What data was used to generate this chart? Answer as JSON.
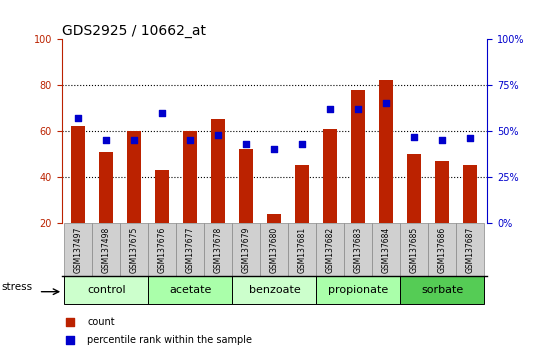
{
  "title": "GDS2925 / 10662_at",
  "samples": [
    "GSM137497",
    "GSM137498",
    "GSM137675",
    "GSM137676",
    "GSM137677",
    "GSM137678",
    "GSM137679",
    "GSM137680",
    "GSM137681",
    "GSM137682",
    "GSM137683",
    "GSM137684",
    "GSM137685",
    "GSM137686",
    "GSM137687"
  ],
  "count_values": [
    62,
    51,
    60,
    43,
    60,
    65,
    52,
    24,
    45,
    61,
    78,
    82,
    50,
    47,
    45
  ],
  "percentile_values": [
    57,
    45,
    45,
    60,
    45,
    48,
    43,
    40,
    43,
    62,
    62,
    65,
    47,
    45,
    46
  ],
  "groups": [
    {
      "label": "control",
      "start": 0,
      "end": 3,
      "color": "#ccffcc"
    },
    {
      "label": "acetate",
      "start": 3,
      "end": 6,
      "color": "#aaffaa"
    },
    {
      "label": "benzoate",
      "start": 6,
      "end": 9,
      "color": "#ccffcc"
    },
    {
      "label": "propionate",
      "start": 9,
      "end": 12,
      "color": "#aaffaa"
    },
    {
      "label": "sorbate",
      "start": 12,
      "end": 15,
      "color": "#55cc55"
    }
  ],
  "bar_color": "#bb2200",
  "dot_color": "#0000cc",
  "ylim_min": 20,
  "ylim_max": 100,
  "y2lim_min": 0,
  "y2lim_max": 100,
  "yticks": [
    20,
    40,
    60,
    80,
    100
  ],
  "y2ticks": [
    0,
    25,
    50,
    75,
    100
  ],
  "grid_values": [
    40,
    60,
    80
  ],
  "bar_width": 0.5,
  "stress_label": "stress",
  "legend_count": "count",
  "legend_percentile": "percentile rank within the sample",
  "sample_box_color": "#d0d0d0",
  "title_fontsize": 10,
  "tick_fontsize": 7,
  "group_fontsize": 8,
  "legend_fontsize": 7
}
